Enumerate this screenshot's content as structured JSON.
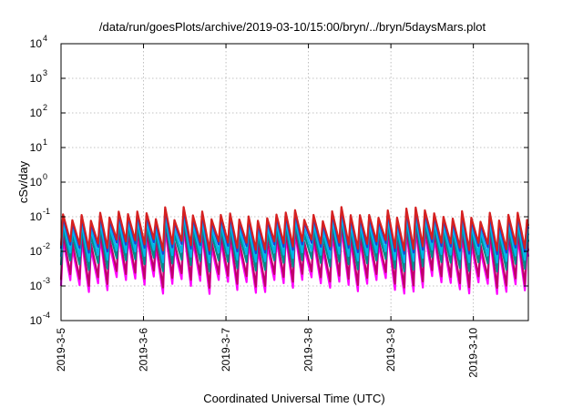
{
  "chart_data": {
    "type": "line",
    "title": "/data/run/goesPlots/archive/2019-03-10/15:00/bryn/../bryn/5daysMars.plot",
    "xlabel": "Coordinated Universal Time (UTC)",
    "ylabel": "cSv/day",
    "yscale": "log",
    "ylim": [
      0.0001,
      10000
    ],
    "xlim": [
      "2019-03-05 00:00",
      "2019-03-10 16:00"
    ],
    "grid": true,
    "x_ticks": [
      "2019-3-5",
      "2019-3-6",
      "2019-3-7",
      "2019-3-8",
      "2019-3-9",
      "2019-3-10"
    ],
    "y_ticks": [
      {
        "base": "10",
        "exp": "-4"
      },
      {
        "base": "10",
        "exp": "-3"
      },
      {
        "base": "10",
        "exp": "-2"
      },
      {
        "base": "10",
        "exp": "-1"
      },
      {
        "base": "10",
        "exp": "0"
      },
      {
        "base": "10",
        "exp": "1"
      },
      {
        "base": "10",
        "exp": "2"
      },
      {
        "base": "10",
        "exp": "3"
      },
      {
        "base": "10",
        "exp": "4"
      }
    ],
    "sawtooth_period_hours": 2.7,
    "series": [
      {
        "color": "#ff00ff",
        "peak": 0.05,
        "trough": 0.001
      },
      {
        "color": "#c0006a",
        "peak": 0.07,
        "trough": 0.0015
      },
      {
        "color": "#008b8b",
        "peak": 0.09,
        "trough": 0.004
      },
      {
        "color": "#00b7eb",
        "peak": 0.12,
        "trough": 0.007
      },
      {
        "color": "#1f3fd6",
        "peak": 0.17,
        "trough": 0.012
      },
      {
        "color": "#d62020",
        "peak": 0.2,
        "trough": 0.015
      }
    ]
  }
}
